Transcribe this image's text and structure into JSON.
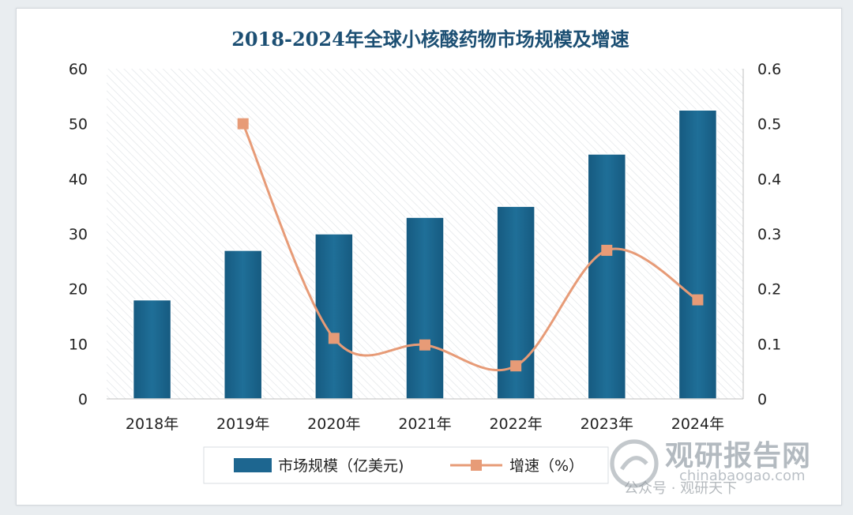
{
  "chart_data": {
    "type": "bar+line",
    "title": "2018-2024年全球小核酸药物市场规模及增速",
    "categories": [
      "2018年",
      "2019年",
      "2020年",
      "2021年",
      "2022年",
      "2023年",
      "2024年"
    ],
    "series": [
      {
        "name": "市场规模（亿美元)",
        "type": "bar",
        "axis": "left",
        "values": [
          18,
          27,
          30,
          33,
          35,
          44.5,
          52.5
        ]
      },
      {
        "name": "增速（%）",
        "type": "line",
        "axis": "right",
        "values": [
          null,
          0.5,
          0.11,
          0.098,
          0.06,
          0.27,
          0.18
        ]
      }
    ],
    "y_left": {
      "range": [
        0,
        60
      ],
      "ticks": [
        "0",
        "10",
        "20",
        "30",
        "40",
        "50",
        "60"
      ]
    },
    "y_right": {
      "range": [
        0,
        0.6
      ],
      "ticks": [
        "0",
        "0.1",
        "0.2",
        "0.3",
        "0.4",
        "0.5",
        "0.6"
      ]
    },
    "legend": "bottom",
    "colors": {
      "bar": "#1d6690",
      "line": "#e79b77",
      "title": "#1c4f73",
      "hatch": "#d8dde2"
    }
  },
  "watermark": {
    "brand": "观研报告网",
    "url": "chinabaogao.com",
    "publisher": "公众号 · 观研天下"
  }
}
